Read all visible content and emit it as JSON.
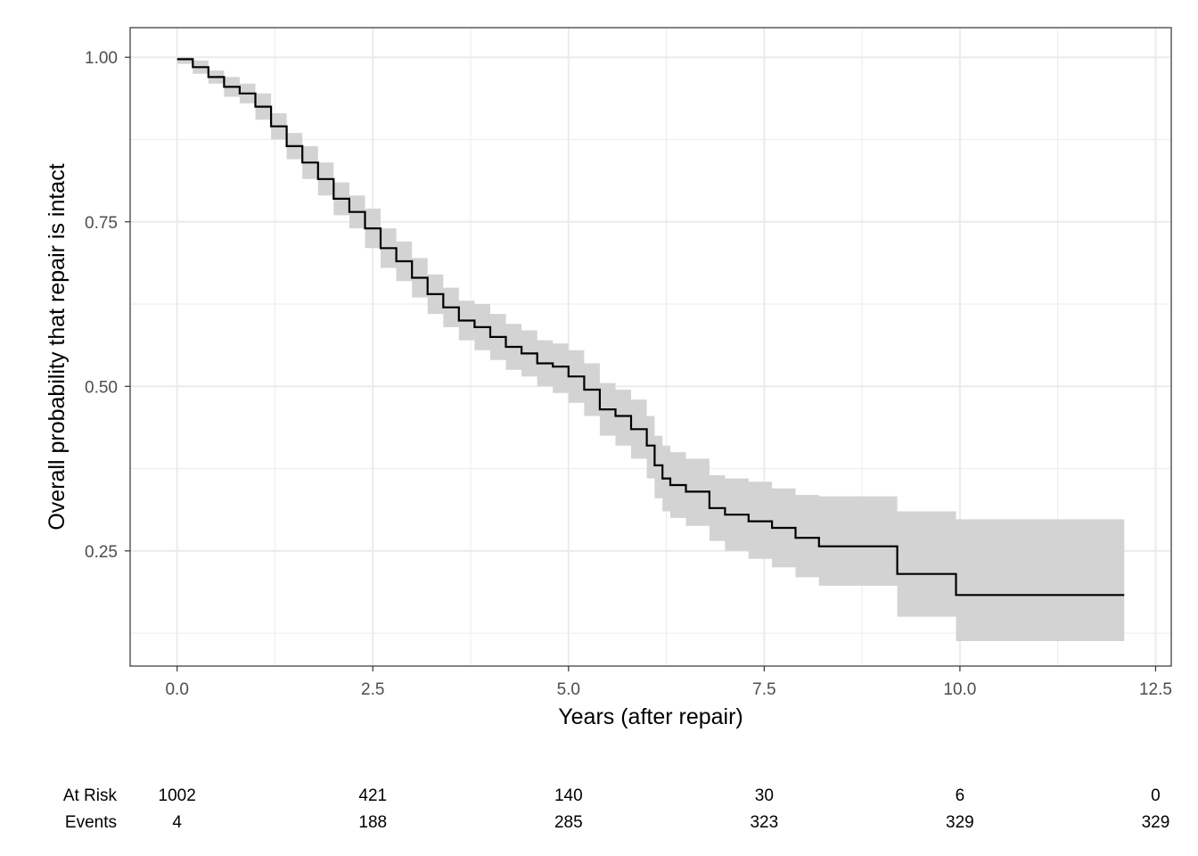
{
  "chart_data": {
    "type": "line",
    "subtype": "kaplan-meier step curve with confidence band",
    "xlabel": "Years (after repair)",
    "ylabel": "Overall probability that repair is intact",
    "xlim": [
      -0.6,
      12.7
    ],
    "ylim": [
      0.075,
      1.045
    ],
    "x_ticks": [
      0.0,
      2.5,
      5.0,
      7.5,
      10.0,
      12.5
    ],
    "x_tick_labels": [
      "0.0",
      "2.5",
      "5.0",
      "7.5",
      "10.0",
      "12.5"
    ],
    "y_ticks": [
      0.25,
      0.5,
      0.75,
      1.0
    ],
    "y_tick_labels": [
      "0.25",
      "0.50",
      "0.75",
      "1.00"
    ],
    "grid": true,
    "legend": "none",
    "colors": {
      "line": "#000000",
      "band": "#d3d3d3",
      "grid": "#ebebeb",
      "border": "#333333"
    },
    "series": [
      {
        "x": [
          0.0,
          0.2,
          0.4,
          0.6,
          0.8,
          1.0,
          1.2,
          1.4,
          1.6,
          1.8,
          2.0,
          2.2,
          2.4,
          2.6,
          2.8,
          3.0,
          3.2,
          3.4,
          3.6,
          3.8,
          4.0,
          4.2,
          4.4,
          4.6,
          4.8,
          5.0,
          5.2,
          5.4,
          5.6,
          5.8,
          6.0,
          6.1,
          6.2,
          6.3,
          6.5,
          6.8,
          7.0,
          7.3,
          7.6,
          7.9,
          8.2,
          9.2,
          9.95,
          12.1
        ],
        "y": [
          0.997,
          0.985,
          0.97,
          0.955,
          0.945,
          0.925,
          0.895,
          0.865,
          0.84,
          0.815,
          0.785,
          0.765,
          0.74,
          0.71,
          0.69,
          0.665,
          0.64,
          0.62,
          0.6,
          0.59,
          0.575,
          0.56,
          0.55,
          0.535,
          0.53,
          0.515,
          0.495,
          0.465,
          0.455,
          0.435,
          0.41,
          0.38,
          0.36,
          0.35,
          0.34,
          0.315,
          0.305,
          0.295,
          0.285,
          0.27,
          0.257,
          0.215,
          0.183,
          0.183
        ],
        "lower": [
          0.99,
          0.975,
          0.96,
          0.94,
          0.93,
          0.905,
          0.875,
          0.845,
          0.815,
          0.79,
          0.76,
          0.74,
          0.71,
          0.68,
          0.66,
          0.635,
          0.61,
          0.59,
          0.57,
          0.555,
          0.54,
          0.525,
          0.515,
          0.5,
          0.49,
          0.475,
          0.455,
          0.425,
          0.41,
          0.39,
          0.36,
          0.33,
          0.31,
          0.3,
          0.288,
          0.265,
          0.25,
          0.238,
          0.225,
          0.21,
          0.197,
          0.15,
          0.113,
          0.113
        ],
        "upper": [
          1.0,
          0.995,
          0.98,
          0.97,
          0.96,
          0.945,
          0.915,
          0.885,
          0.865,
          0.84,
          0.81,
          0.79,
          0.77,
          0.74,
          0.72,
          0.695,
          0.67,
          0.65,
          0.63,
          0.625,
          0.61,
          0.595,
          0.585,
          0.57,
          0.565,
          0.555,
          0.535,
          0.505,
          0.495,
          0.48,
          0.455,
          0.425,
          0.41,
          0.4,
          0.39,
          0.365,
          0.36,
          0.355,
          0.345,
          0.335,
          0.333,
          0.31,
          0.298,
          0.298
        ]
      }
    ]
  },
  "risk_table": {
    "rows": [
      {
        "label": "At Risk",
        "values": [
          "1002",
          "421",
          "140",
          "30",
          "6",
          "0"
        ]
      },
      {
        "label": "Events",
        "values": [
          "4",
          "188",
          "285",
          "323",
          "329",
          "329"
        ]
      }
    ],
    "times": [
      0.0,
      2.5,
      5.0,
      7.5,
      10.0,
      12.5
    ]
  }
}
